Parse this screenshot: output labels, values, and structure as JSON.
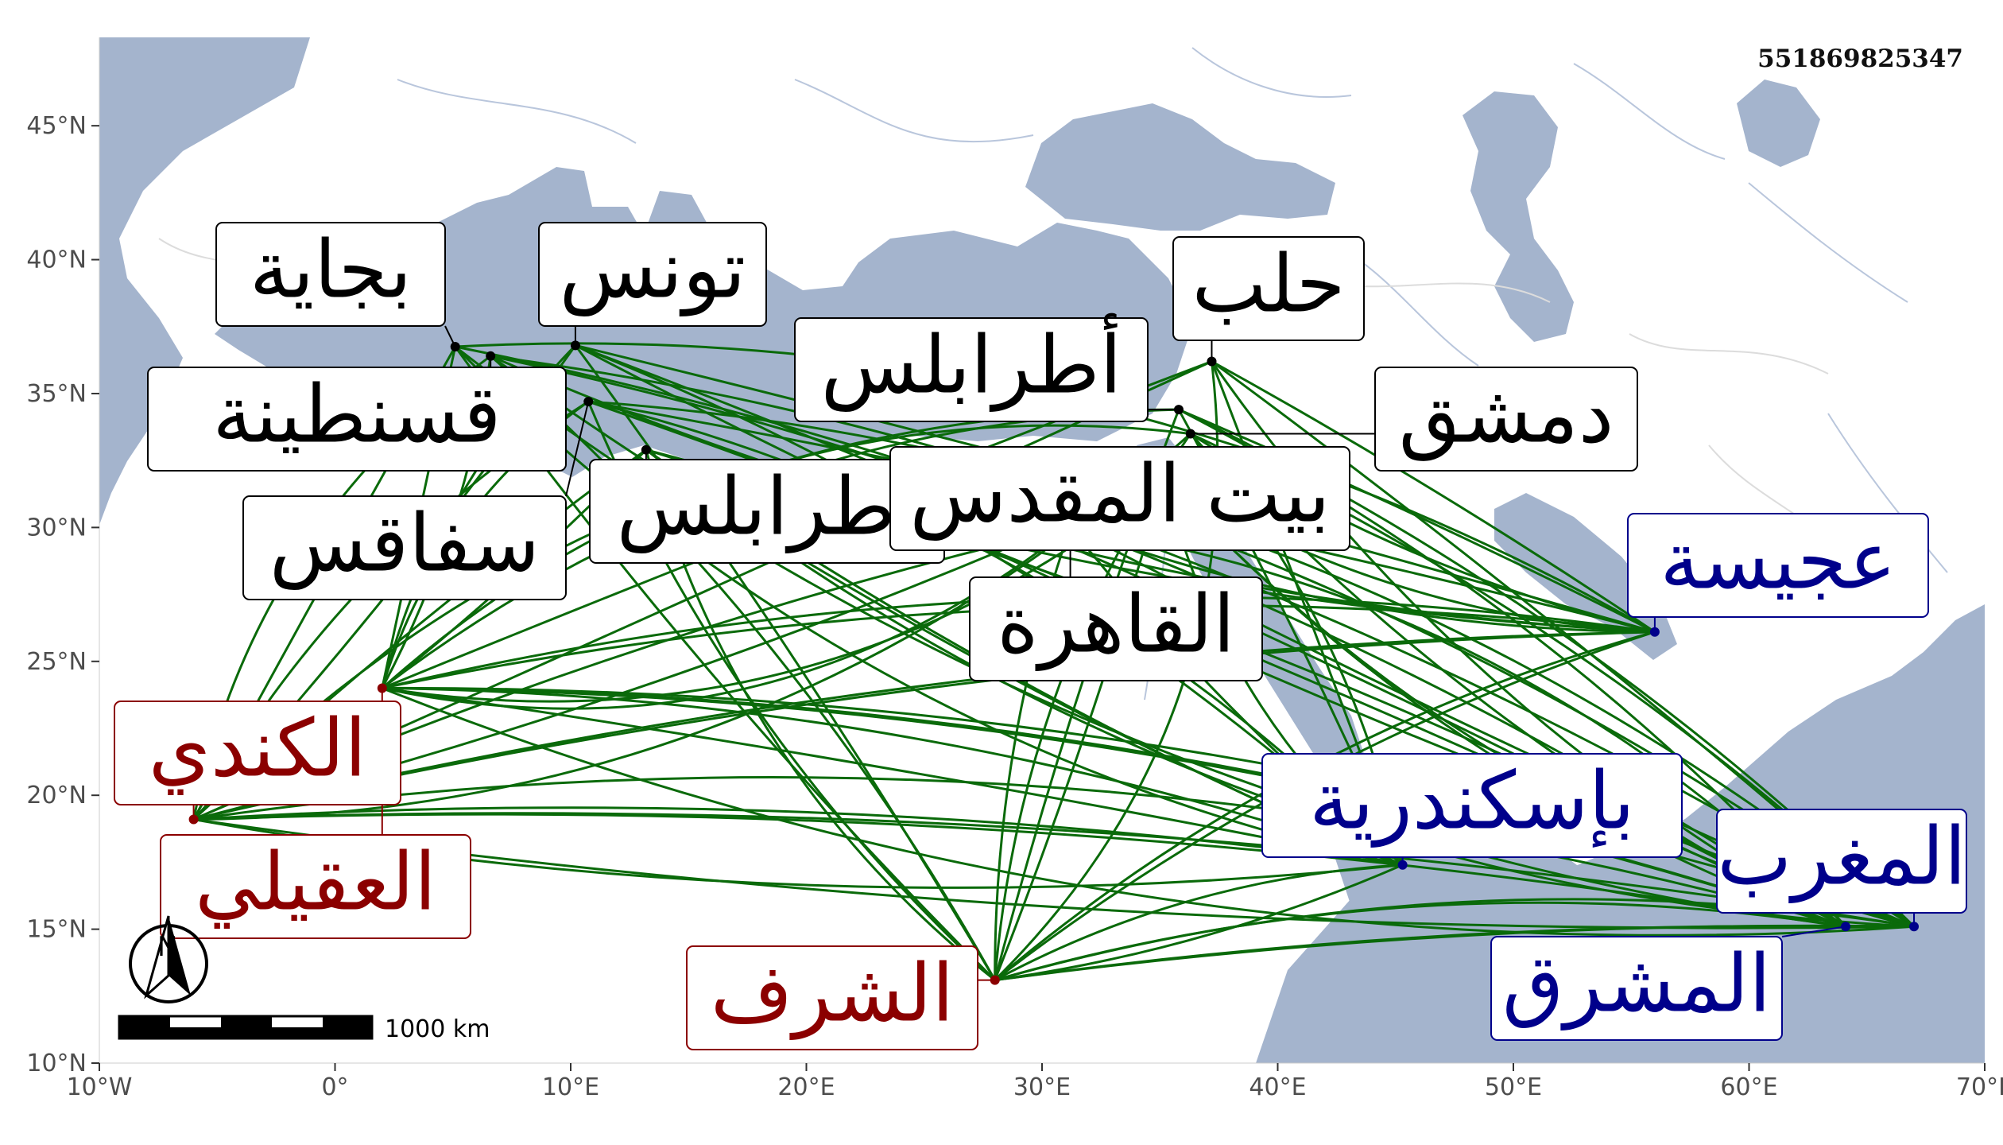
{
  "map": {
    "identifier": "551869825347",
    "colors": {
      "water": "#a4b4cd",
      "land": "#ffffff",
      "river": "#b9c6dc",
      "road": "#dcdcdc",
      "route": "#0a6a0a",
      "origin": "#8b0000",
      "destination": "#00008b",
      "waypoint": "#000000"
    },
    "x_axis": {
      "ticks": [
        {
          "lon": -10,
          "label": "10°W"
        },
        {
          "lon": 0,
          "label": "0°"
        },
        {
          "lon": 10,
          "label": "10°E"
        },
        {
          "lon": 20,
          "label": "20°E"
        },
        {
          "lon": 30,
          "label": "30°E"
        },
        {
          "lon": 40,
          "label": "40°E"
        },
        {
          "lon": 50,
          "label": "50°E"
        },
        {
          "lon": 60,
          "label": "60°E"
        },
        {
          "lon": 70,
          "label": "70°E"
        }
      ]
    },
    "y_axis": {
      "ticks": [
        {
          "lat": 10,
          "label": "10°N"
        },
        {
          "lat": 15,
          "label": "15°N"
        },
        {
          "lat": 20,
          "label": "20°N"
        },
        {
          "lat": 25,
          "label": "25°N"
        },
        {
          "lat": 30,
          "label": "30°N"
        },
        {
          "lat": 35,
          "label": "35°N"
        },
        {
          "lat": 40,
          "label": "40°N"
        },
        {
          "lat": 45,
          "label": "45°N"
        }
      ]
    },
    "scale_bar": {
      "label": "1000 km"
    },
    "north_arrow": {
      "label": "N"
    },
    "places": [
      {
        "id": "bijaya",
        "name": "بجاية",
        "lon": 5.1,
        "lat": 36.75,
        "role": "waypoint"
      },
      {
        "id": "tunis",
        "name": "تونس",
        "lon": 10.2,
        "lat": 36.8,
        "role": "waypoint"
      },
      {
        "id": "qusantina",
        "name": "قسنطينة",
        "lon": 6.6,
        "lat": 36.4,
        "role": "waypoint"
      },
      {
        "id": "sfax",
        "name": "سفاقس",
        "lon": 10.75,
        "lat": 34.7,
        "role": "waypoint"
      },
      {
        "id": "tarabulus-w",
        "name": "أطرابلس",
        "lon": 13.2,
        "lat": 32.9,
        "role": "waypoint"
      },
      {
        "id": "halab",
        "name": "حلب",
        "lon": 37.2,
        "lat": 36.2,
        "role": "waypoint"
      },
      {
        "id": "atrabulus-e",
        "name": "أطرابلس",
        "lon": 35.8,
        "lat": 34.4,
        "role": "waypoint"
      },
      {
        "id": "dimashq",
        "name": "دمشق",
        "lon": 36.3,
        "lat": 33.5,
        "role": "waypoint"
      },
      {
        "id": "bayt-almaqdis",
        "name": "بيت المقدس",
        "lon": 35.2,
        "lat": 31.8,
        "role": "waypoint"
      },
      {
        "id": "alqahira",
        "name": "القاهرة",
        "lon": 31.2,
        "lat": 30.0,
        "role": "waypoint"
      },
      {
        "id": "ajisa",
        "name": "عجيسة",
        "lon": 56.0,
        "lat": 26.1,
        "role": "destination"
      },
      {
        "id": "biskandariya",
        "name": "بإسكندرية",
        "lon": 45.3,
        "lat": 17.4,
        "role": "destination"
      },
      {
        "id": "almaghrib",
        "name": "المغرب",
        "lon": 67.0,
        "lat": 15.1,
        "role": "destination"
      },
      {
        "id": "almashriq",
        "name": "المشرق",
        "lon": 64.1,
        "lat": 15.1,
        "role": "destination"
      },
      {
        "id": "alkindi",
        "name": "الكندي",
        "lon": -6.0,
        "lat": 19.1,
        "role": "origin"
      },
      {
        "id": "aluqayli",
        "name": "العقيلي",
        "lon": 2.0,
        "lat": 24.0,
        "role": "origin"
      },
      {
        "id": "alsharaf",
        "name": "الشرف",
        "lon": 28.0,
        "lat": 13.1,
        "role": "origin"
      }
    ]
  }
}
